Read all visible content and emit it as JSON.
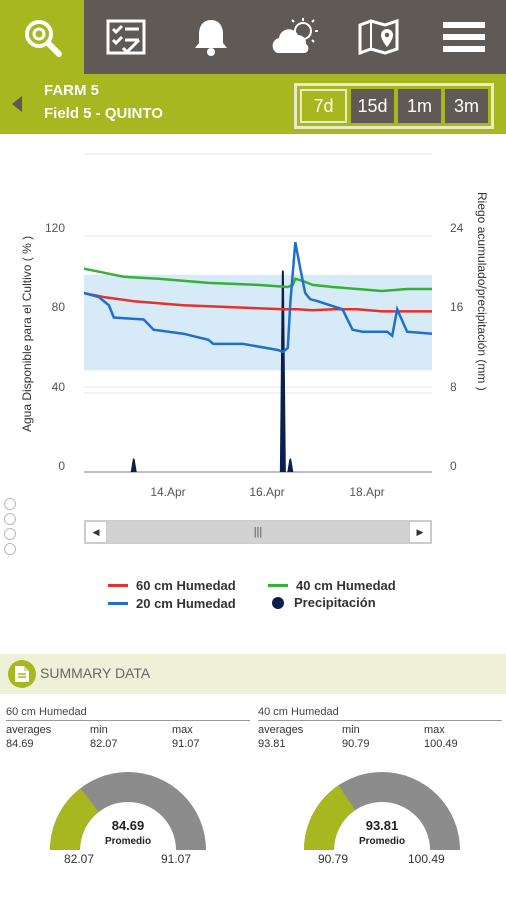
{
  "nav": {
    "items": [
      {
        "icon": "search-icon",
        "active": true
      },
      {
        "icon": "checklist-icon",
        "active": false
      },
      {
        "icon": "bell-icon",
        "active": false
      },
      {
        "icon": "weather-icon",
        "active": false
      },
      {
        "icon": "map-icon",
        "active": false
      },
      {
        "icon": "menu-icon",
        "active": false
      }
    ]
  },
  "header": {
    "farm": "FARM 5",
    "field": "Field 5 - QUINTO",
    "ranges": [
      "7d",
      "15d",
      "1m",
      "3m"
    ],
    "selected_range": "7d"
  },
  "chart_data": {
    "type": "line",
    "x_ticks": [
      "14.Apr",
      "16.Apr",
      "18.Apr"
    ],
    "y_left": {
      "label": "Agua Disponible para el Cultivo ( % )",
      "ticks": [
        "0",
        "40",
        "80",
        "120"
      ],
      "range": [
        0,
        120
      ]
    },
    "y_right": {
      "label": "Riego acumulado/precipitación (mm )",
      "ticks": [
        "0",
        "8",
        "16",
        "24"
      ],
      "range": [
        0,
        24
      ]
    },
    "band": [
      50,
      97
    ],
    "x_range": [
      0,
      7
    ],
    "series": [
      {
        "name": "60 cm Humedad",
        "color": "#e8302a",
        "x": [
          0,
          0.4,
          1,
          2,
          3,
          4,
          4.3,
          4.6,
          5,
          5.5,
          6,
          6.5,
          7
        ],
        "y": [
          88,
          86,
          84,
          82,
          81,
          80,
          80,
          79.5,
          80,
          80,
          79,
          79,
          79
        ]
      },
      {
        "name": "40 cm Humedad",
        "color": "#33b233",
        "x": [
          0,
          0.4,
          0.8,
          1.5,
          2.5,
          3.5,
          4.1,
          4.2,
          4.25,
          4.4,
          4.6,
          5,
          5.5,
          6,
          6.5,
          7
        ],
        "y": [
          100,
          98,
          96,
          95,
          93,
          92,
          91,
          92,
          95,
          94,
          92,
          91,
          90,
          89,
          90,
          90
        ]
      },
      {
        "name": "20 cm Humedad",
        "color": "#1f6fd1",
        "x": [
          0,
          0.3,
          0.5,
          0.6,
          1.2,
          1.4,
          2.0,
          2.5,
          2.6,
          3.2,
          3.9,
          4.0,
          4.1,
          4.15,
          4.25,
          4.35,
          4.45,
          4.55,
          4.7,
          5.2,
          5.4,
          5.6,
          6.1,
          6.2,
          6.3,
          6.5,
          7
        ],
        "y": [
          88,
          86,
          82,
          76,
          75,
          70,
          68,
          65,
          63,
          63,
          60,
          59,
          61,
          83,
          113,
          100,
          88,
          85,
          84,
          80,
          70,
          69,
          69,
          67,
          80,
          69,
          68
        ]
      }
    ],
    "precipitation": {
      "name": "Precipitación",
      "color": "#0b1f4d",
      "bars": [
        {
          "x": 1,
          "mm": 1.5
        },
        {
          "x": 4.0,
          "mm": 20.0
        },
        {
          "x": 4.15,
          "mm": 1.5
        }
      ]
    }
  },
  "summary": {
    "title": "SUMMARY DATA",
    "stat_labels": {
      "avg": "averages",
      "min": "min",
      "max": "max"
    },
    "gauge_caption": "Promedio",
    "panels": [
      {
        "title": "60 cm Humedad",
        "avg": "84.69",
        "min": "82.07",
        "max": "91.07",
        "avg_value": 84.69,
        "min_value": 82.07,
        "max_value": 91.07
      },
      {
        "title": "40 cm Humedad",
        "avg": "93.81",
        "min": "90.79",
        "max": "100.49",
        "avg_value": 93.81,
        "min_value": 90.79,
        "max_value": 100.49
      }
    ]
  },
  "colors": {
    "accent": "#a6b71f",
    "nav": "#5f5a55",
    "gauge_grey": "#8c8c8c"
  }
}
